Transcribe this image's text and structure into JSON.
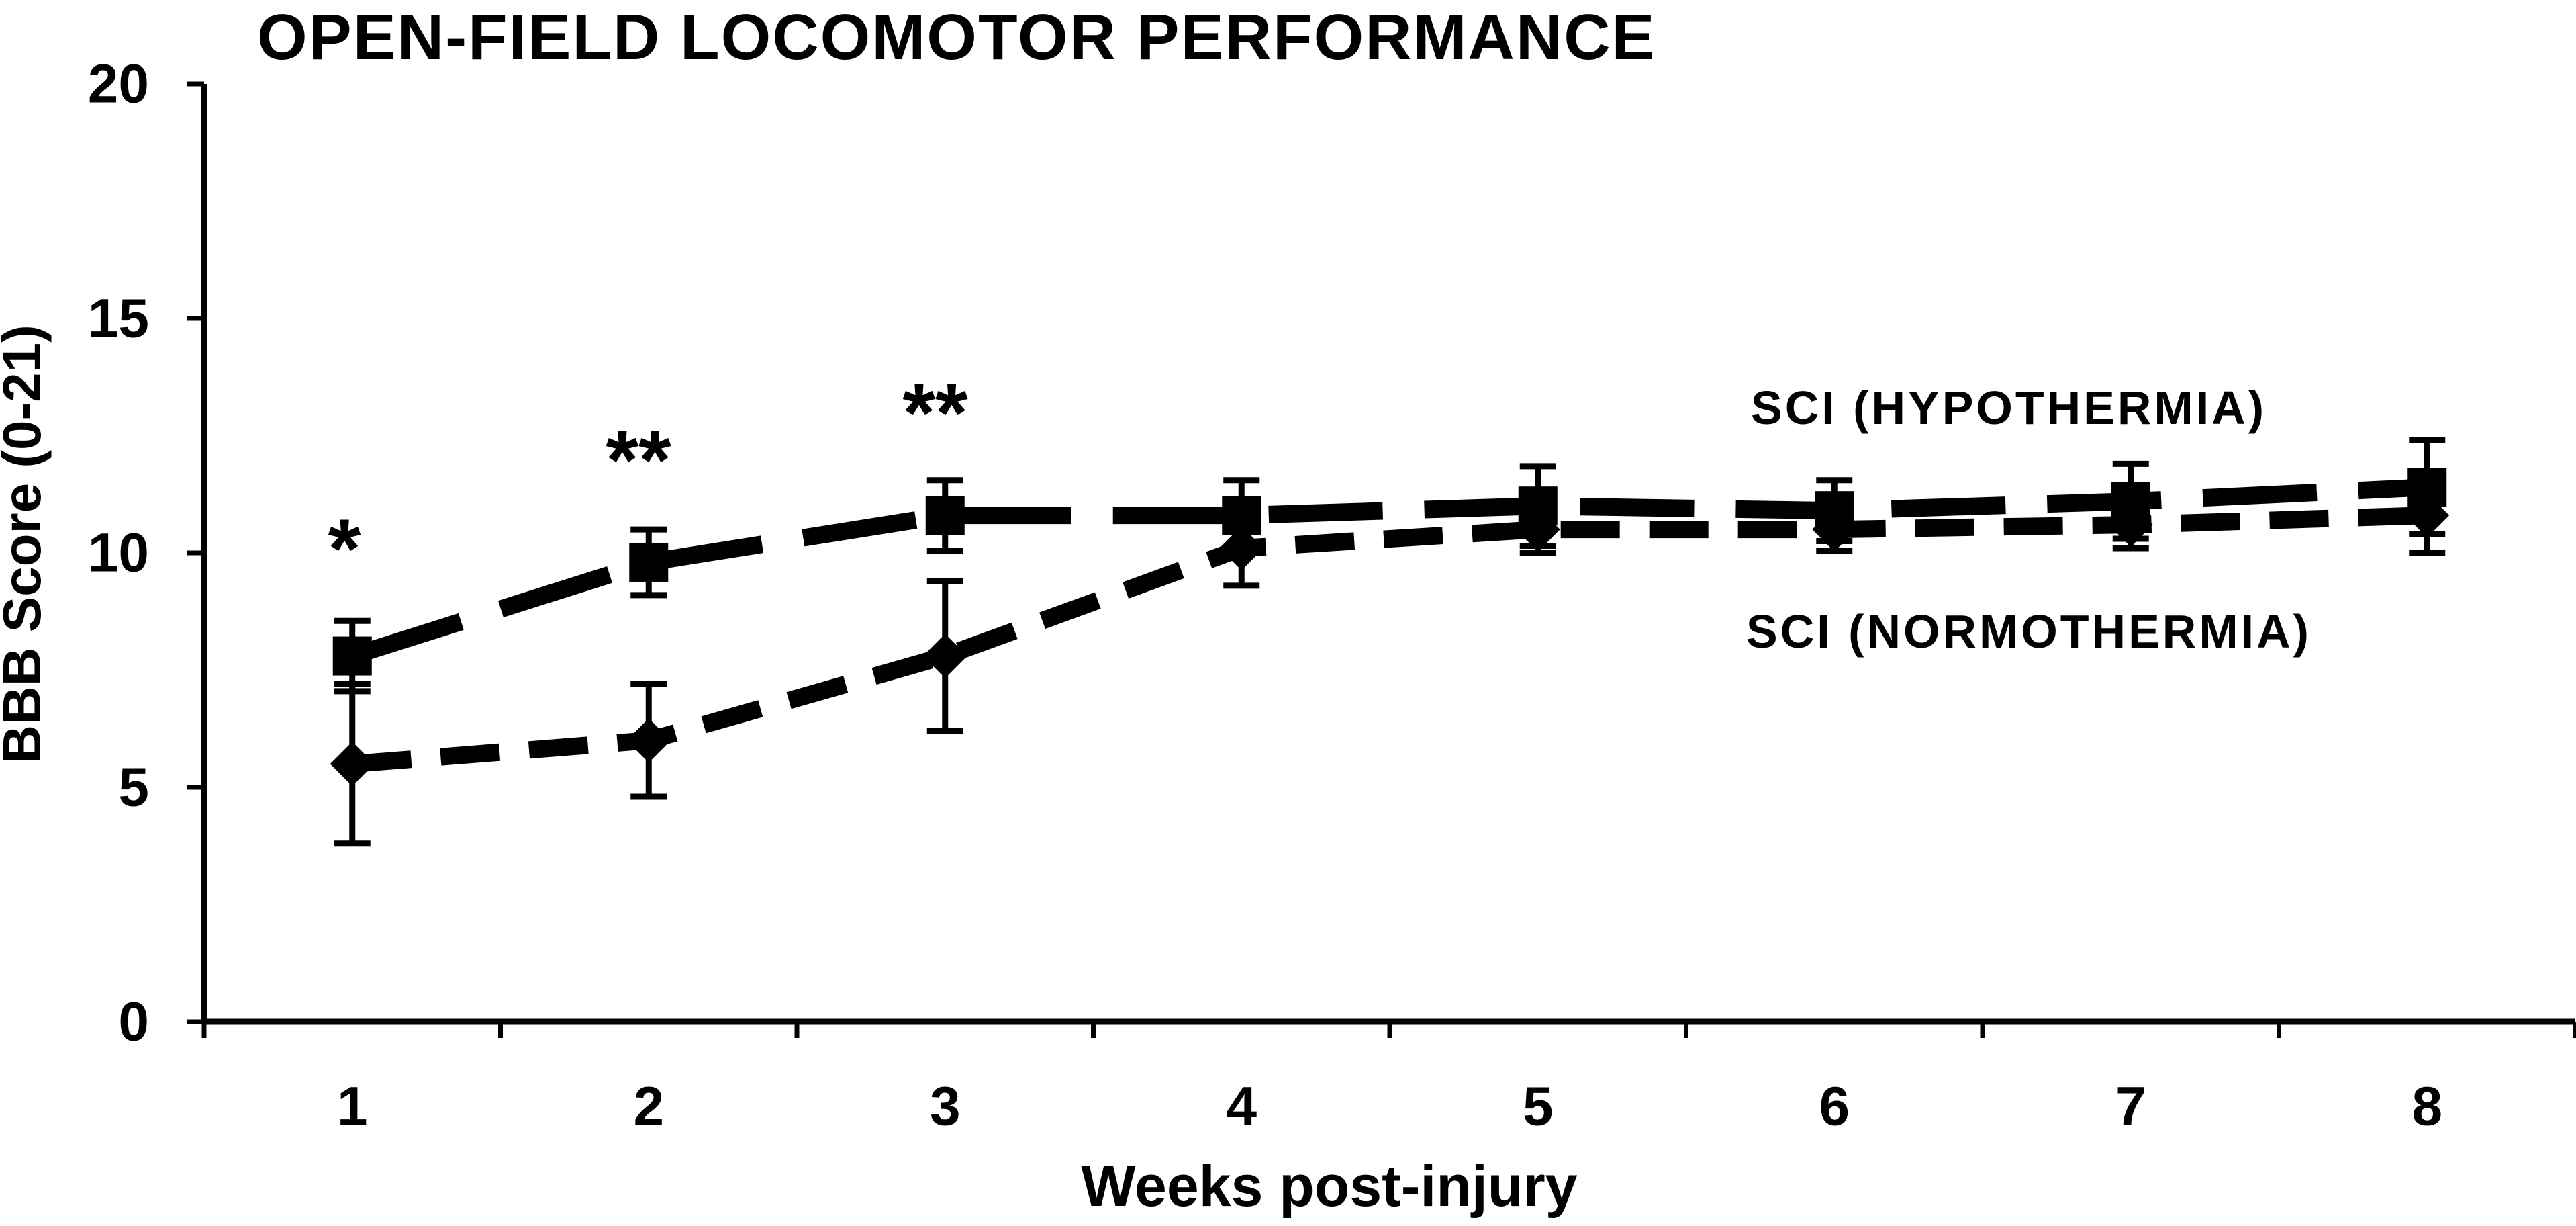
{
  "figure": {
    "title": "OPEN-FIELD LOCOMOTOR PERFORMANCE"
  },
  "chart_data": {
    "type": "line",
    "title": "OPEN-FIELD LOCOMOTOR PERFORMANCE",
    "xlabel": "Weeks post-injury",
    "ylabel": "BBB Score (0-21)",
    "x": [
      1,
      2,
      3,
      4,
      5,
      6,
      7,
      8
    ],
    "ylim": [
      0,
      20
    ],
    "y_ticks": [
      0,
      5,
      10,
      15,
      20
    ],
    "grid": false,
    "background": "#ffffff",
    "ink": "#000000",
    "legend_position": "inline-right",
    "series": [
      {
        "name": "SCI (HYPOTHERMIA)",
        "marker": "square",
        "line_style": "long-dash",
        "values": [
          7.8,
          9.8,
          10.8,
          10.8,
          11.0,
          10.9,
          11.1,
          11.4
        ],
        "error": [
          0.75,
          0.7,
          0.75,
          0.75,
          0.85,
          0.65,
          0.8,
          1.0
        ]
      },
      {
        "name": "SCI (NORMOTHERMIA)",
        "marker": "diamond",
        "line_style": "short-dash",
        "values": [
          5.5,
          6.0,
          7.8,
          10.1,
          10.5,
          10.5,
          10.6,
          10.8
        ],
        "error": [
          1.7,
          1.2,
          1.6,
          0.8,
          0.5,
          0.45,
          0.5,
          0.8
        ]
      }
    ],
    "annotations": [
      {
        "text": "*",
        "week": 1,
        "y": 10.4
      },
      {
        "text": "**",
        "week": 2,
        "y": 12.3
      },
      {
        "text": "**",
        "week": 3,
        "y": 13.3
      }
    ]
  }
}
